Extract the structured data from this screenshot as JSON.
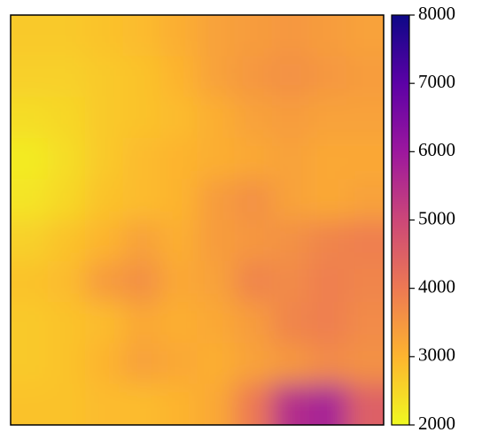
{
  "chart_data": {
    "type": "heatmap",
    "values": [
      [
        2700,
        2700,
        2800,
        2900,
        3100,
        3300,
        3400,
        3500,
        3400,
        3300
      ],
      [
        2600,
        2600,
        2700,
        2800,
        3000,
        3300,
        3500,
        3600,
        3500,
        3400
      ],
      [
        2400,
        2500,
        2700,
        2800,
        2900,
        3100,
        3300,
        3400,
        3300,
        3300
      ],
      [
        2200,
        2400,
        2700,
        2900,
        3000,
        3100,
        3200,
        3300,
        3200,
        3200
      ],
      [
        2300,
        2500,
        2800,
        2900,
        3000,
        3400,
        3600,
        3300,
        3200,
        3300
      ],
      [
        2600,
        2800,
        3000,
        3300,
        3100,
        3400,
        3500,
        3600,
        3800,
        3900
      ],
      [
        2800,
        2900,
        3400,
        3600,
        3200,
        3300,
        3800,
        3700,
        3900,
        3800
      ],
      [
        2700,
        2800,
        2900,
        3200,
        3100,
        3200,
        3400,
        3800,
        3900,
        3700
      ],
      [
        2700,
        2800,
        3000,
        3300,
        3200,
        3100,
        3300,
        3500,
        3700,
        3600
      ],
      [
        2800,
        2800,
        2900,
        2900,
        3000,
        3200,
        4000,
        5500,
        5800,
        4500
      ]
    ],
    "colormap": [
      "#f0f921",
      "#fdb42f",
      "#ed7953",
      "#cc4778",
      "#9c179e",
      "#5c01a6",
      "#0d0887"
    ],
    "clim": [
      2000,
      8000
    ],
    "colorbar_ticks": [
      2000,
      3000,
      4000,
      5000,
      6000,
      7000,
      8000
    ]
  }
}
